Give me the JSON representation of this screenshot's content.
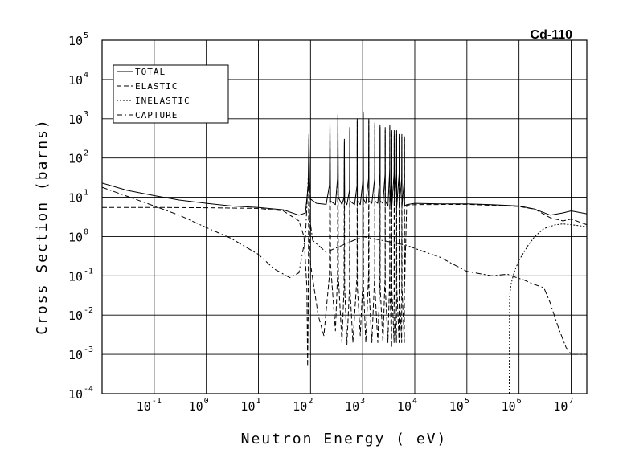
{
  "chart_data": {
    "type": "line",
    "title": "Cd-110",
    "xlabel": "Neutron Energy ( eV)",
    "ylabel": "Cross Section (barns)",
    "x_scale": "log",
    "y_scale": "log",
    "xlim": [
      0.01,
      20000000
    ],
    "ylim": [
      0.0001,
      100000
    ],
    "grid": true,
    "legend_position": "top-left",
    "x_ticks": [
      {
        "base": "10",
        "exp": "-1",
        "value": 0.1
      },
      {
        "base": "10",
        "exp": "0",
        "value": 1
      },
      {
        "base": "10",
        "exp": "1",
        "value": 10
      },
      {
        "base": "10",
        "exp": "2",
        "value": 100
      },
      {
        "base": "10",
        "exp": "3",
        "value": 1000
      },
      {
        "base": "10",
        "exp": "4",
        "value": 10000
      },
      {
        "base": "10",
        "exp": "5",
        "value": 100000
      },
      {
        "base": "10",
        "exp": "6",
        "value": 1000000
      },
      {
        "base": "10",
        "exp": "7",
        "value": 10000000
      }
    ],
    "y_ticks": [
      {
        "base": "10",
        "exp": "-4",
        "value": 0.0001
      },
      {
        "base": "10",
        "exp": "-3",
        "value": 0.001
      },
      {
        "base": "10",
        "exp": "-2",
        "value": 0.01
      },
      {
        "base": "10",
        "exp": "-1",
        "value": 0.1
      },
      {
        "base": "10",
        "exp": "0",
        "value": 1
      },
      {
        "base": "10",
        "exp": "1",
        "value": 10
      },
      {
        "base": "10",
        "exp": "2",
        "value": 100
      },
      {
        "base": "10",
        "exp": "3",
        "value": 1000
      },
      {
        "base": "10",
        "exp": "4",
        "value": 10000
      },
      {
        "base": "10",
        "exp": "5",
        "value": 100000
      }
    ],
    "series": [
      {
        "name": "TOTAL",
        "dash": "solid",
        "points": [
          [
            0.01,
            23
          ],
          [
            0.03,
            15
          ],
          [
            0.1,
            11
          ],
          [
            0.3,
            8.5
          ],
          [
            1,
            7
          ],
          [
            3,
            6
          ],
          [
            10,
            5.5
          ],
          [
            30,
            4.8
          ],
          [
            60,
            3.5
          ],
          [
            80,
            4
          ],
          [
            90,
            20
          ],
          [
            93,
            400
          ],
          [
            96,
            25
          ],
          [
            100,
            9
          ],
          [
            130,
            7
          ],
          [
            200,
            6.6
          ],
          [
            230,
            20
          ],
          [
            236,
            800
          ],
          [
            242,
            8
          ],
          [
            300,
            6.5
          ],
          [
            330,
            30
          ],
          [
            336,
            1300
          ],
          [
            342,
            10
          ],
          [
            400,
            6.5
          ],
          [
            440,
            10
          ],
          [
            446,
            300
          ],
          [
            452,
            8
          ],
          [
            500,
            6.5
          ],
          [
            560,
            15
          ],
          [
            566,
            600
          ],
          [
            572,
            8
          ],
          [
            700,
            6.5
          ],
          [
            780,
            20
          ],
          [
            786,
            1000
          ],
          [
            792,
            8
          ],
          [
            900,
            6.5
          ],
          [
            1020,
            30
          ],
          [
            1028,
            1500
          ],
          [
            1036,
            9
          ],
          [
            1150,
            7
          ],
          [
            1300,
            30
          ],
          [
            1310,
            1000
          ],
          [
            1320,
            8
          ],
          [
            1500,
            7
          ],
          [
            1700,
            30
          ],
          [
            1710,
            800
          ],
          [
            1720,
            8
          ],
          [
            1950,
            7
          ],
          [
            2150,
            40
          ],
          [
            2160,
            700
          ],
          [
            2170,
            8
          ],
          [
            2450,
            7
          ],
          [
            2700,
            40
          ],
          [
            2710,
            600
          ],
          [
            2720,
            8
          ],
          [
            3050,
            6
          ],
          [
            3300,
            50
          ],
          [
            3320,
            700
          ],
          [
            3340,
            6
          ],
          [
            3600,
            40
          ],
          [
            3620,
            500
          ],
          [
            3640,
            6
          ],
          [
            4000,
            40
          ],
          [
            4030,
            500
          ],
          [
            4060,
            6
          ],
          [
            4450,
            40
          ],
          [
            4480,
            500
          ],
          [
            4510,
            6
          ],
          [
            5000,
            40
          ],
          [
            5030,
            400
          ],
          [
            5060,
            6
          ],
          [
            5600,
            30
          ],
          [
            5640,
            400
          ],
          [
            5680,
            6
          ],
          [
            6300,
            30
          ],
          [
            6340,
            350
          ],
          [
            6380,
            6
          ],
          [
            7000,
            6.5
          ],
          [
            10000,
            7
          ],
          [
            30000,
            6.8
          ],
          [
            100000,
            6.8
          ],
          [
            300000,
            6.5
          ],
          [
            1000000,
            6
          ],
          [
            2000000,
            5
          ],
          [
            4000000,
            3.5
          ],
          [
            7000000,
            4
          ],
          [
            10000000,
            4.5
          ],
          [
            20000000,
            3.8
          ]
        ]
      },
      {
        "name": "ELASTIC",
        "dash": "dashed",
        "points": [
          [
            0.01,
            5.5
          ],
          [
            0.1,
            5.5
          ],
          [
            1,
            5.4
          ],
          [
            10,
            5.2
          ],
          [
            30,
            4.5
          ],
          [
            60,
            2.5
          ],
          [
            75,
            1
          ],
          [
            85,
            0.05
          ],
          [
            88,
            0.0005
          ],
          [
            90,
            0.01
          ],
          [
            93,
            300
          ],
          [
            96,
            1
          ],
          [
            100,
            0.2
          ],
          [
            140,
            0.01
          ],
          [
            180,
            0.003
          ],
          [
            230,
            0.1
          ],
          [
            236,
            700
          ],
          [
            242,
            0.2
          ],
          [
            300,
            0.004
          ],
          [
            330,
            0.1
          ],
          [
            336,
            1200
          ],
          [
            342,
            0.1
          ],
          [
            400,
            0.002
          ],
          [
            440,
            0.05
          ],
          [
            446,
            250
          ],
          [
            452,
            0.05
          ],
          [
            500,
            0.0018
          ],
          [
            560,
            0.05
          ],
          [
            566,
            500
          ],
          [
            572,
            0.05
          ],
          [
            650,
            0.002
          ],
          [
            780,
            0.1
          ],
          [
            786,
            900
          ],
          [
            792,
            0.05
          ],
          [
            900,
            0.003
          ],
          [
            1020,
            0.1
          ],
          [
            1028,
            1300
          ],
          [
            1036,
            0.05
          ],
          [
            1150,
            0.002
          ],
          [
            1300,
            0.1
          ],
          [
            1310,
            900
          ],
          [
            1320,
            0.05
          ],
          [
            1500,
            0.002
          ],
          [
            1700,
            0.1
          ],
          [
            1710,
            700
          ],
          [
            1720,
            0.05
          ],
          [
            1950,
            0.002
          ],
          [
            2150,
            0.1
          ],
          [
            2160,
            600
          ],
          [
            2170,
            0.05
          ],
          [
            2450,
            0.002
          ],
          [
            2700,
            0.1
          ],
          [
            2710,
            500
          ],
          [
            2720,
            0.05
          ],
          [
            3050,
            0.002
          ],
          [
            3300,
            0.1
          ],
          [
            3320,
            600
          ],
          [
            3340,
            0.05
          ],
          [
            3600,
            0.0015
          ],
          [
            3620,
            400
          ],
          [
            3640,
            0.05
          ],
          [
            4000,
            0.002
          ],
          [
            4030,
            400
          ],
          [
            4060,
            0.05
          ],
          [
            4450,
            0.002
          ],
          [
            4480,
            400
          ],
          [
            4510,
            0.05
          ],
          [
            5000,
            0.002
          ],
          [
            5030,
            350
          ],
          [
            5060,
            0.05
          ],
          [
            5600,
            0.002
          ],
          [
            5640,
            350
          ],
          [
            5680,
            0.05
          ],
          [
            6300,
            0.002
          ],
          [
            6340,
            300
          ],
          [
            6380,
            0.05
          ],
          [
            7000,
            6.3
          ],
          [
            10000,
            6.5
          ],
          [
            100000,
            6.6
          ],
          [
            1000000,
            5.8
          ],
          [
            2000000,
            5
          ],
          [
            4000000,
            3
          ],
          [
            7000000,
            2.5
          ],
          [
            10000000,
            2.8
          ],
          [
            20000000,
            2
          ]
        ]
      },
      {
        "name": "INELASTIC",
        "dash": "dotted",
        "points": [
          [
            650000,
            0.0001
          ],
          [
            660000,
            0.03
          ],
          [
            700000,
            0.06
          ],
          [
            800000,
            0.12
          ],
          [
            1000000,
            0.25
          ],
          [
            1500000,
            0.6
          ],
          [
            2000000,
            1
          ],
          [
            3000000,
            1.6
          ],
          [
            5000000,
            2
          ],
          [
            7000000,
            2.1
          ],
          [
            10000000,
            2
          ],
          [
            20000000,
            1.8
          ]
        ]
      },
      {
        "name": "CAPTURE",
        "dash": "dashdot",
        "points": [
          [
            0.01,
            18
          ],
          [
            0.1,
            6
          ],
          [
            0.3,
            3.5
          ],
          [
            1,
            1.7
          ],
          [
            3,
            0.9
          ],
          [
            10,
            0.35
          ],
          [
            20,
            0.15
          ],
          [
            40,
            0.09
          ],
          [
            60,
            0.12
          ],
          [
            80,
            1
          ],
          [
            90,
            30
          ],
          [
            93,
            15
          ],
          [
            96,
            3
          ],
          [
            110,
            0.8
          ],
          [
            200,
            0.4
          ],
          [
            1000,
            1
          ],
          [
            7000,
            0.6
          ],
          [
            10000,
            0.5
          ],
          [
            30000,
            0.3
          ],
          [
            100000,
            0.13
          ],
          [
            300000,
            0.1
          ],
          [
            600000,
            0.11
          ],
          [
            900000,
            0.09
          ],
          [
            1200000,
            0.08
          ],
          [
            2000000,
            0.06
          ],
          [
            3000000,
            0.05
          ],
          [
            4000000,
            0.02
          ],
          [
            5000000,
            0.008
          ],
          [
            6000000,
            0.004
          ],
          [
            8000000,
            0.0015
          ],
          [
            10000000,
            0.001
          ],
          [
            20000000,
            0.001
          ]
        ]
      }
    ]
  }
}
